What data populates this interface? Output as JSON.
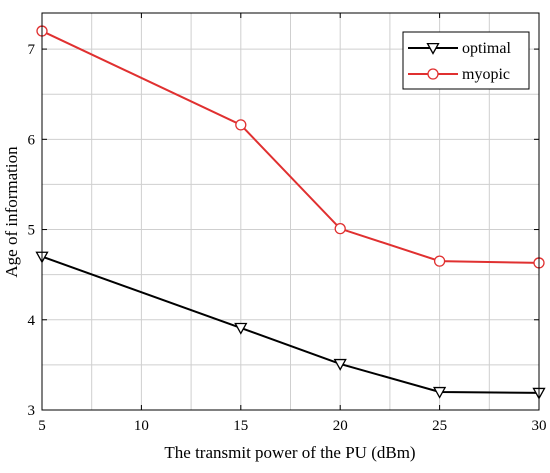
{
  "chart_data": {
    "type": "line",
    "title": "",
    "xlabel": "The transmit power of the PU (dBm)",
    "ylabel": "Age of information",
    "xlim": [
      5,
      30
    ],
    "ylim": [
      3,
      7.4
    ],
    "x_ticks": [
      5,
      10,
      15,
      20,
      25,
      30
    ],
    "y_ticks": [
      3,
      4,
      5,
      6,
      7
    ],
    "x_tick_labels": [
      "5",
      "10",
      "15",
      "20",
      "25",
      "30"
    ],
    "y_tick_labels": [
      "3",
      "4",
      "5",
      "6",
      "7"
    ],
    "grid": true,
    "legend_position": "top-right",
    "x": [
      5,
      15,
      20,
      25,
      30
    ],
    "series": [
      {
        "name": "optimal",
        "values": [
          4.7,
          3.91,
          3.51,
          3.2,
          3.19
        ],
        "color": "#000000",
        "marker": "triangle-down"
      },
      {
        "name": "myopic",
        "values": [
          7.2,
          6.16,
          5.01,
          4.65,
          4.63
        ],
        "color": "#e03030",
        "marker": "circle"
      }
    ]
  }
}
